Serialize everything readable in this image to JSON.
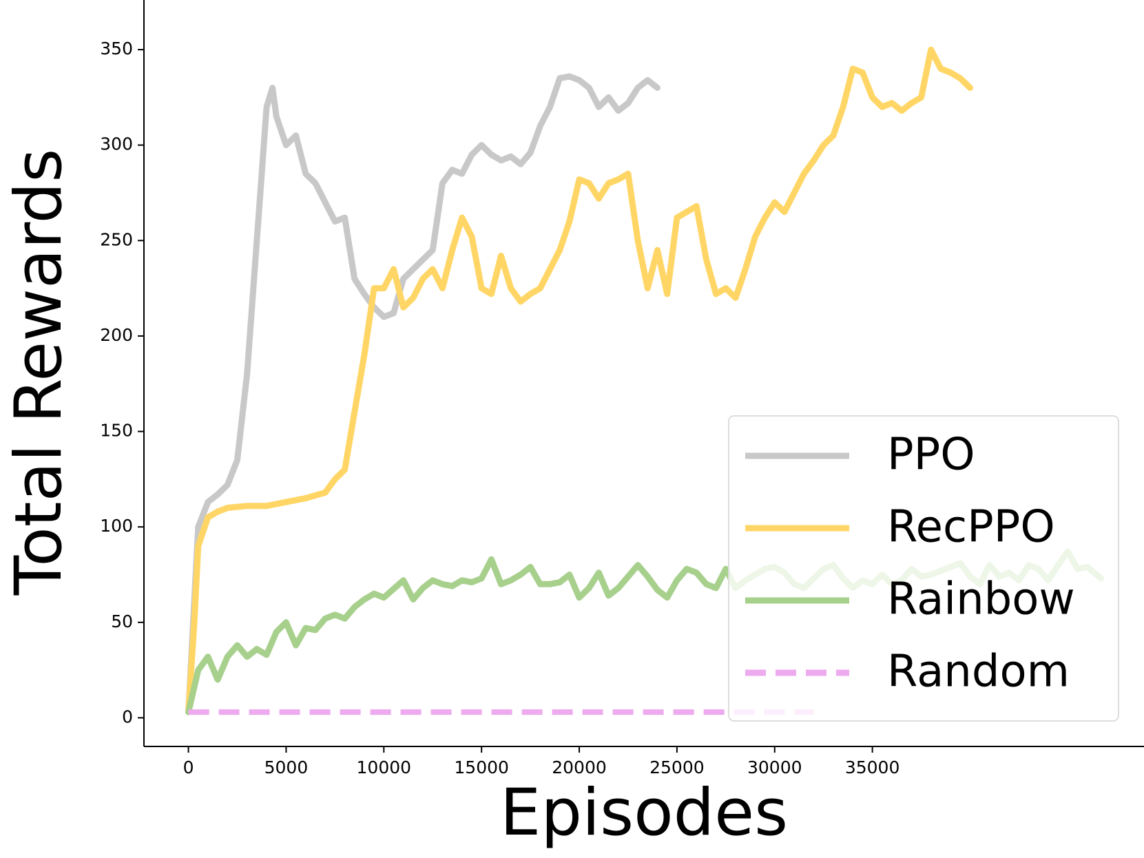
{
  "chart_data": {
    "type": "line",
    "xlabel": "Episodes",
    "ylabel": "Total Rewards",
    "xlim": [
      -2276,
      48900
    ],
    "ylim": [
      -15,
      376
    ],
    "xticks": [
      0,
      5000,
      10000,
      15000,
      20000,
      25000,
      30000,
      35000
    ],
    "yticks": [
      0,
      50,
      100,
      150,
      200,
      250,
      300,
      350
    ],
    "legend": "lower right",
    "series": [
      {
        "name": "PPO",
        "color": "#c8c8c8",
        "linestyle": "solid",
        "x": [
          0,
          500,
          1000,
          1500,
          2000,
          2500,
          3000,
          3500,
          4000,
          4300,
          4500,
          5000,
          5500,
          6000,
          6500,
          7000,
          7500,
          8000,
          8500,
          9000,
          9500,
          10000,
          10500,
          11000,
          11500,
          12000,
          12500,
          13000,
          13500,
          14000,
          14500,
          15000,
          15500,
          16000,
          16500,
          17000,
          17500,
          18000,
          18500,
          19000,
          19500,
          20000,
          20500,
          21000,
          21500,
          22000,
          22500,
          23000,
          23500,
          24000
        ],
        "values": [
          3,
          100,
          113,
          117,
          122,
          135,
          180,
          250,
          320,
          330,
          315,
          300,
          305,
          285,
          280,
          270,
          260,
          262,
          230,
          222,
          215,
          210,
          212,
          230,
          235,
          240,
          245,
          280,
          287,
          285,
          295,
          300,
          295,
          292,
          294,
          290,
          296,
          310,
          320,
          335,
          336,
          334,
          330,
          320,
          325,
          318,
          322,
          330,
          334,
          330
        ]
      },
      {
        "name": "RecPPO",
        "color": "#ffd666",
        "linestyle": "solid",
        "x": [
          0,
          300,
          500,
          1000,
          1500,
          2000,
          3000,
          4000,
          5000,
          6000,
          7000,
          7500,
          8000,
          8500,
          9000,
          9500,
          10000,
          10500,
          11000,
          11500,
          12000,
          12500,
          13000,
          13500,
          14000,
          14500,
          15000,
          15500,
          16000,
          16500,
          17000,
          17500,
          18000,
          18500,
          19000,
          19500,
          20000,
          20500,
          21000,
          21500,
          22000,
          22500,
          23000,
          23500,
          24000,
          24500,
          25000,
          25500,
          26000,
          26500,
          27000,
          27500,
          28000,
          28500,
          29000,
          29500,
          30000,
          30500,
          31000,
          31500,
          32000,
          32500,
          33000,
          33500,
          34000,
          34500,
          35000,
          35500,
          36000,
          36500,
          37000,
          37500,
          38000,
          38500,
          39000,
          39500,
          40000
        ],
        "values": [
          3,
          50,
          90,
          105,
          108,
          110,
          111,
          111,
          113,
          115,
          118,
          125,
          130,
          160,
          190,
          225,
          225,
          235,
          215,
          220,
          230,
          235,
          225,
          245,
          262,
          252,
          225,
          222,
          242,
          225,
          218,
          222,
          225,
          235,
          245,
          260,
          282,
          280,
          272,
          280,
          282,
          285,
          250,
          225,
          245,
          222,
          262,
          265,
          268,
          240,
          222,
          225,
          220,
          235,
          252,
          262,
          270,
          265,
          275,
          285,
          292,
          300,
          305,
          320,
          340,
          338,
          325,
          320,
          322,
          318,
          322,
          325,
          350,
          340,
          338,
          335,
          330
        ]
      },
      {
        "name": "Rainbow",
        "color": "#a8d08d",
        "linestyle": "solid",
        "x": [
          0,
          500,
          1000,
          1500,
          2000,
          2500,
          3000,
          3500,
          4000,
          4500,
          5000,
          5500,
          6000,
          6500,
          7000,
          7500,
          8000,
          8500,
          9000,
          9500,
          10000,
          11000,
          11500,
          12000,
          12500,
          13000,
          13500,
          14000,
          14500,
          15000,
          15500,
          16000,
          16500,
          17000,
          17500,
          18000,
          18500,
          19000,
          19500,
          20000,
          20500,
          21000,
          21500,
          22000,
          22500,
          23000,
          23500,
          24000,
          24500,
          25000,
          25500,
          26000,
          26500,
          27000,
          27500,
          28000,
          28500,
          29000,
          29500,
          30000,
          30500,
          31000,
          31500,
          32000,
          32500,
          33000,
          33500,
          34000,
          34500,
          35000,
          35500,
          36000,
          36500,
          37000,
          37500,
          38000,
          38500,
          39000,
          39500,
          40000,
          40500,
          41000,
          41500,
          42000,
          42500,
          43000,
          43500,
          44000,
          44500,
          45000,
          45500,
          46000,
          46700
        ],
        "values": [
          3,
          25,
          32,
          20,
          32,
          38,
          32,
          36,
          33,
          45,
          50,
          38,
          47,
          46,
          52,
          54,
          52,
          58,
          62,
          65,
          63,
          72,
          62,
          68,
          72,
          70,
          69,
          72,
          71,
          73,
          83,
          70,
          72,
          75,
          79,
          70,
          70,
          71,
          75,
          63,
          68,
          76,
          64,
          68,
          74,
          80,
          74,
          67,
          63,
          72,
          78,
          76,
          70,
          68,
          78,
          68,
          72,
          75,
          78,
          79,
          76,
          70,
          68,
          73,
          78,
          80,
          73,
          68,
          72,
          70,
          75,
          70,
          72,
          78,
          74,
          75,
          77,
          79,
          81,
          74,
          70,
          80,
          74,
          76,
          72,
          80,
          78,
          72,
          80,
          87,
          78,
          79,
          73
        ]
      },
      {
        "name": "Random",
        "color": "#eeaaee",
        "linestyle": "dashed",
        "x": [
          0,
          32000
        ],
        "values": [
          3,
          3
        ]
      }
    ]
  }
}
